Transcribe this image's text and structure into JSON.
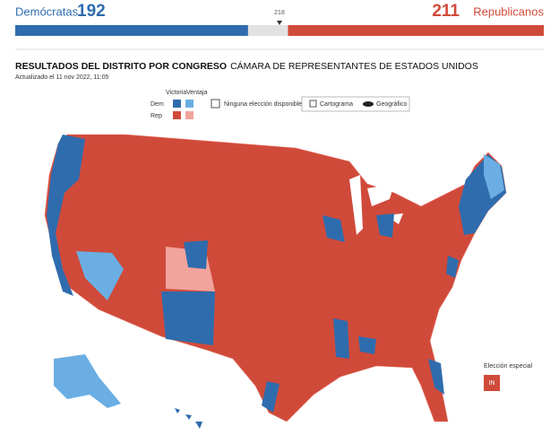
{
  "header": {
    "dem": {
      "label": "Demócratas",
      "seats": 192
    },
    "rep": {
      "label": "Republicanos",
      "seats": 211
    },
    "majority": 218
  },
  "title": {
    "main": "RESULTADOS DEL DISTRITO POR CONGRESO",
    "sub": "CÁMARA DE REPRESENTANTES DE ESTADOS UNIDOS",
    "updated": "Actualizado el 11 nov 2022, 11:05"
  },
  "legend": {
    "win": "Victoria",
    "lead": "Ventaja",
    "dem": "Dem",
    "rep": "Rep",
    "none": "Ninguna elección disponible",
    "cartogram": "Cartograma",
    "geographic": "Geográfico"
  },
  "special": {
    "title": "Elección especial",
    "state": "IN"
  }
}
